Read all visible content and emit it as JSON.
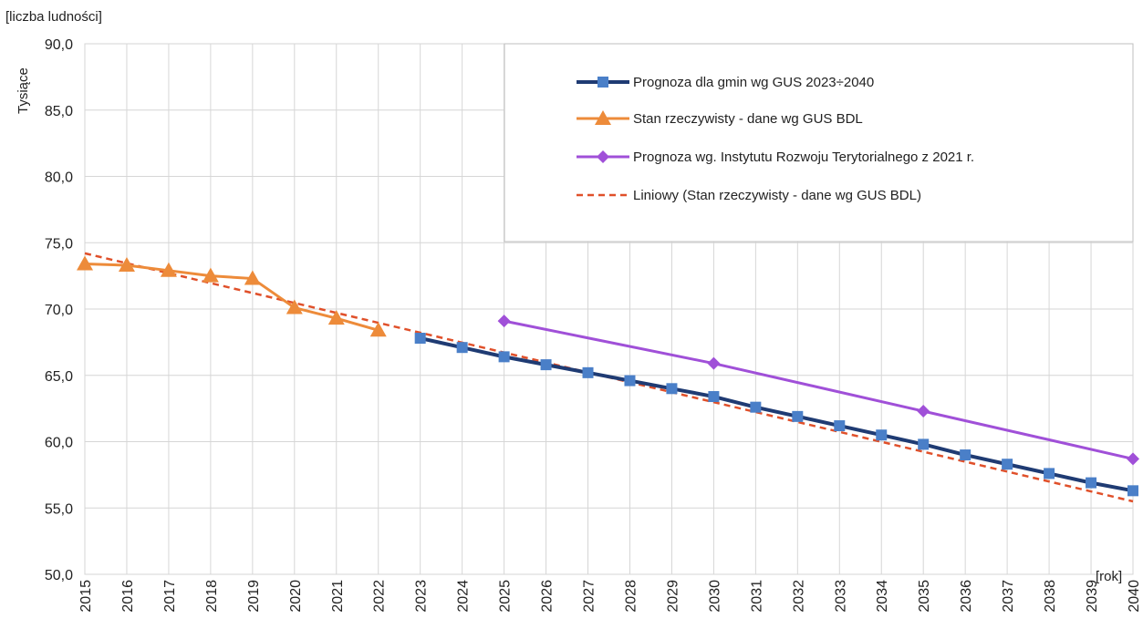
{
  "chart_data": {
    "type": "line",
    "y_unit_label": "[liczba ludności]",
    "ylabel": "Tysiące",
    "x_unit_label": "[rok]",
    "x": [
      2015,
      2016,
      2017,
      2018,
      2019,
      2020,
      2021,
      2022,
      2023,
      2024,
      2025,
      2026,
      2027,
      2028,
      2029,
      2030,
      2031,
      2032,
      2033,
      2034,
      2035,
      2036,
      2037,
      2038,
      2039,
      2040
    ],
    "ylim": [
      50,
      90
    ],
    "yticks": [
      "50,0",
      "55,0",
      "60,0",
      "65,0",
      "70,0",
      "75,0",
      "80,0",
      "85,0",
      "90,0"
    ],
    "grid": true,
    "legend_position": "top-right",
    "series": [
      {
        "name": "Prognoza dla gmin wg GUS 2023÷2040",
        "color": "#1f3b73",
        "marker_color": "#4a7fc8",
        "marker": "square",
        "points": [
          [
            2023,
            67.8
          ],
          [
            2024,
            67.1
          ],
          [
            2025,
            66.4
          ],
          [
            2026,
            65.8
          ],
          [
            2027,
            65.2
          ],
          [
            2028,
            64.6
          ],
          [
            2029,
            64.0
          ],
          [
            2030,
            63.4
          ],
          [
            2031,
            62.6
          ],
          [
            2032,
            61.9
          ],
          [
            2033,
            61.2
          ],
          [
            2034,
            60.5
          ],
          [
            2035,
            59.8
          ],
          [
            2036,
            59.0
          ],
          [
            2037,
            58.3
          ],
          [
            2038,
            57.6
          ],
          [
            2039,
            56.9
          ],
          [
            2040,
            56.3
          ]
        ]
      },
      {
        "name": "Stan rzeczywisty - dane wg GUS BDL",
        "color": "#ed8b3a",
        "marker_color": "#ed8b3a",
        "marker": "triangle",
        "points": [
          [
            2015,
            73.4
          ],
          [
            2016,
            73.3
          ],
          [
            2017,
            72.9
          ],
          [
            2018,
            72.5
          ],
          [
            2019,
            72.3
          ],
          [
            2020,
            70.1
          ],
          [
            2021,
            69.3
          ],
          [
            2022,
            68.4
          ]
        ]
      },
      {
        "name": "Prognoza wg. Instytutu Rozwoju Terytorialnego z 2021 r.",
        "color": "#a050d8",
        "marker_color": "#a050d8",
        "marker": "diamond",
        "points": [
          [
            2025,
            69.1
          ],
          [
            2030,
            65.9
          ],
          [
            2035,
            62.3
          ],
          [
            2040,
            58.7
          ]
        ]
      },
      {
        "name": "Liniowy (Stan rzeczywisty - dane wg GUS BDL)",
        "color": "#e0502a",
        "marker": "none",
        "dashed": true,
        "points": [
          [
            2015,
            74.2
          ],
          [
            2040,
            55.5
          ]
        ]
      }
    ]
  }
}
